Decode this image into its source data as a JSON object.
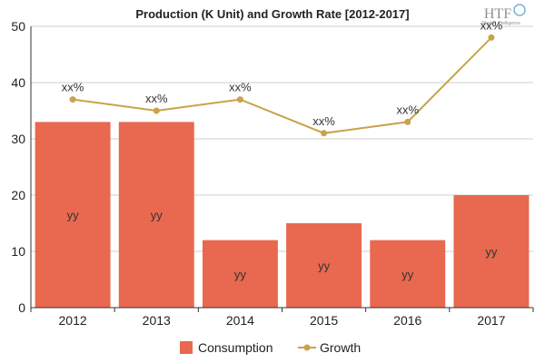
{
  "chart_data": {
    "type": "bar",
    "title": "Production (K Unit) and Growth Rate [2012-2017]",
    "categories": [
      "2012",
      "2013",
      "2014",
      "2015",
      "2016",
      "2017"
    ],
    "series": [
      {
        "name": "Consumption",
        "kind": "bar",
        "values": [
          33,
          33,
          12,
          15,
          12,
          20
        ],
        "labels": [
          "yy",
          "yy",
          "yy",
          "yy",
          "yy",
          "yy"
        ]
      },
      {
        "name": "Growth",
        "kind": "line",
        "values": [
          37,
          35,
          37,
          31,
          33,
          48
        ],
        "labels": [
          "xx%",
          "xx%",
          "xx%",
          "xx%",
          "xx%",
          "xx%"
        ]
      }
    ],
    "ylim": [
      0,
      50
    ],
    "yticks": [
      "0",
      "10",
      "20",
      "30",
      "40",
      "50"
    ],
    "grid": true,
    "legend": "bottom"
  },
  "logo": {
    "text": "HTF",
    "subtitle": "Market Intelligence"
  },
  "colors": {
    "bar": "#e8694f",
    "line": "#c9a24a",
    "grid": "#cfcfcf",
    "axis": "#333333"
  }
}
